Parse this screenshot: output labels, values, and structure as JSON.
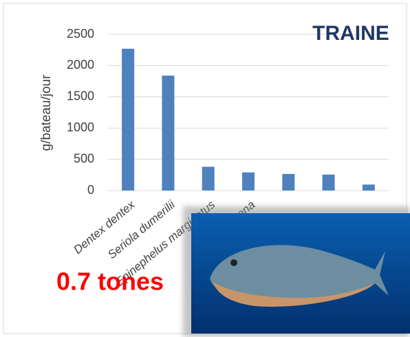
{
  "chart_data": {
    "type": "bar",
    "title": "TRAINE",
    "y_label": "g/bateau/jour",
    "annotation": "0.7 tones",
    "categories": [
      "Dentex dentex",
      "Seriola dumerilii",
      "Epinephelus marginatus",
      "Sphyraena",
      null,
      null,
      null
    ],
    "values": [
      2270,
      1840,
      380,
      290,
      265,
      255,
      95
    ],
    "color": "#4f81bd",
    "ylim": [
      0,
      2500
    ],
    "yticks": [
      0,
      500,
      1000,
      1500,
      2000,
      2500
    ],
    "grid": true
  }
}
